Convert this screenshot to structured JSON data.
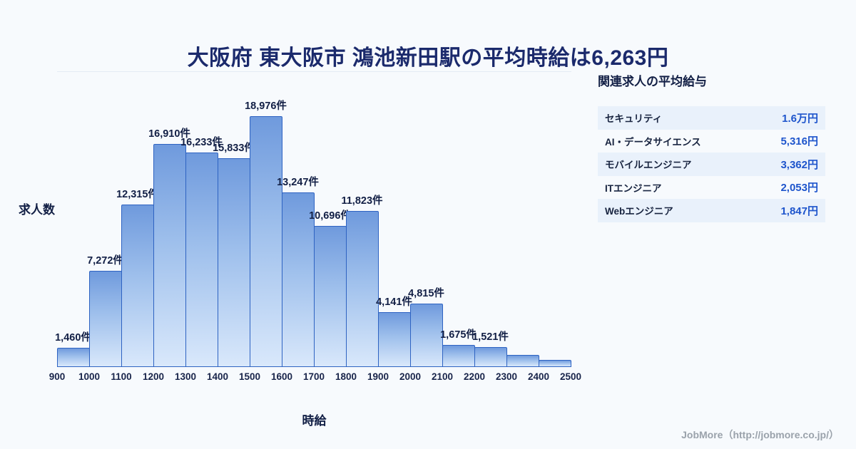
{
  "title": "大阪府 東大阪市 鴻池新田駅の平均時給は6,263円",
  "chart_data": {
    "type": "bar",
    "title": "大阪府 東大阪市 鴻池新田駅の平均時給は6,263円",
    "xlabel": "時給",
    "ylabel": "求人数",
    "x_ticks": [
      "900",
      "1000",
      "1100",
      "1200",
      "1300",
      "1400",
      "1500",
      "1600",
      "1700",
      "1800",
      "1900",
      "2000",
      "2100",
      "2200",
      "2300",
      "2400",
      "2500"
    ],
    "values": [
      1460,
      7272,
      12315,
      16910,
      16233,
      15833,
      18976,
      13247,
      10696,
      11823,
      4141,
      4815,
      1675,
      1521,
      900,
      520
    ],
    "labels": [
      "1,460件",
      "7,272件",
      "12,315件",
      "16,910件",
      "16,233件",
      "15,833件",
      "18,976件",
      "13,247件",
      "10,696件",
      "11,823件",
      "4,141件",
      "4,815件",
      "1,675件",
      "1,521件",
      "",
      ""
    ],
    "ylim": [
      0,
      22400
    ],
    "grid": "top-line-only",
    "legend": "none",
    "colors": {
      "bar_gradient_top": "#6f9add",
      "bar_gradient_bottom": "#d9e8fb",
      "bar_border": "#2e63c2",
      "title_text": "#1b2a6c",
      "value_accent": "#1e55cc"
    }
  },
  "side_panel": {
    "heading": "関連求人の平均給与",
    "rows": [
      {
        "label": "セキュリティ",
        "value": "1.6万円"
      },
      {
        "label": "AI・データサイエンス",
        "value": "5,316円"
      },
      {
        "label": "モバイルエンジニア",
        "value": "3,362円"
      },
      {
        "label": "ITエンジニア",
        "value": "2,053円"
      },
      {
        "label": "Webエンジニア",
        "value": "1,847円"
      }
    ]
  },
  "footer": {
    "credit": "JobMore（http://jobmore.co.jp/）"
  }
}
